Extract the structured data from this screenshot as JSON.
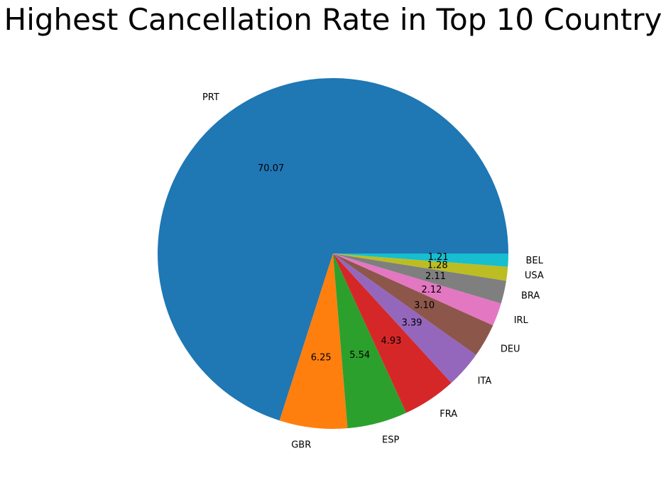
{
  "chart_data": {
    "type": "pie",
    "title": "Highest Cancellation Rate in Top 10 Country",
    "categories": [
      "PRT",
      "GBR",
      "ESP",
      "FRA",
      "ITA",
      "DEU",
      "IRL",
      "BRA",
      "USA",
      "BEL"
    ],
    "values": [
      70.07,
      6.25,
      5.54,
      4.93,
      3.39,
      3.1,
      2.12,
      2.11,
      1.28,
      1.21
    ],
    "value_labels": [
      "70.07",
      "6.25",
      "5.54",
      "4.93",
      "3.39",
      "3.10",
      "2.12",
      "2.11",
      "1.28",
      "1.21"
    ],
    "colors": [
      "#1f77b4",
      "#ff7f0e",
      "#2ca02c",
      "#d62728",
      "#9467bd",
      "#8c564b",
      "#e377c2",
      "#7f7f7f",
      "#bcbd22",
      "#17becf"
    ],
    "start_angle_deg": 0,
    "direction": "counterclockwise",
    "legend": "none"
  }
}
